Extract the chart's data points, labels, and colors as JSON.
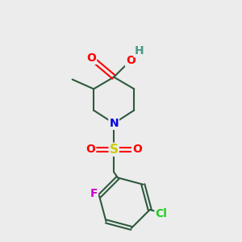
{
  "background_color": "#ececec",
  "bond_color": "#2d5a3d",
  "bond_width": 1.5,
  "atom_colors": {
    "O": "#ff0000",
    "N": "#0000dd",
    "S": "#cccc00",
    "F": "#cc00cc",
    "Cl": "#22cc22",
    "H": "#449988",
    "C": "#2d5a3d"
  },
  "font_size": 9,
  "figsize": [
    3.0,
    3.0
  ],
  "dpi": 100
}
